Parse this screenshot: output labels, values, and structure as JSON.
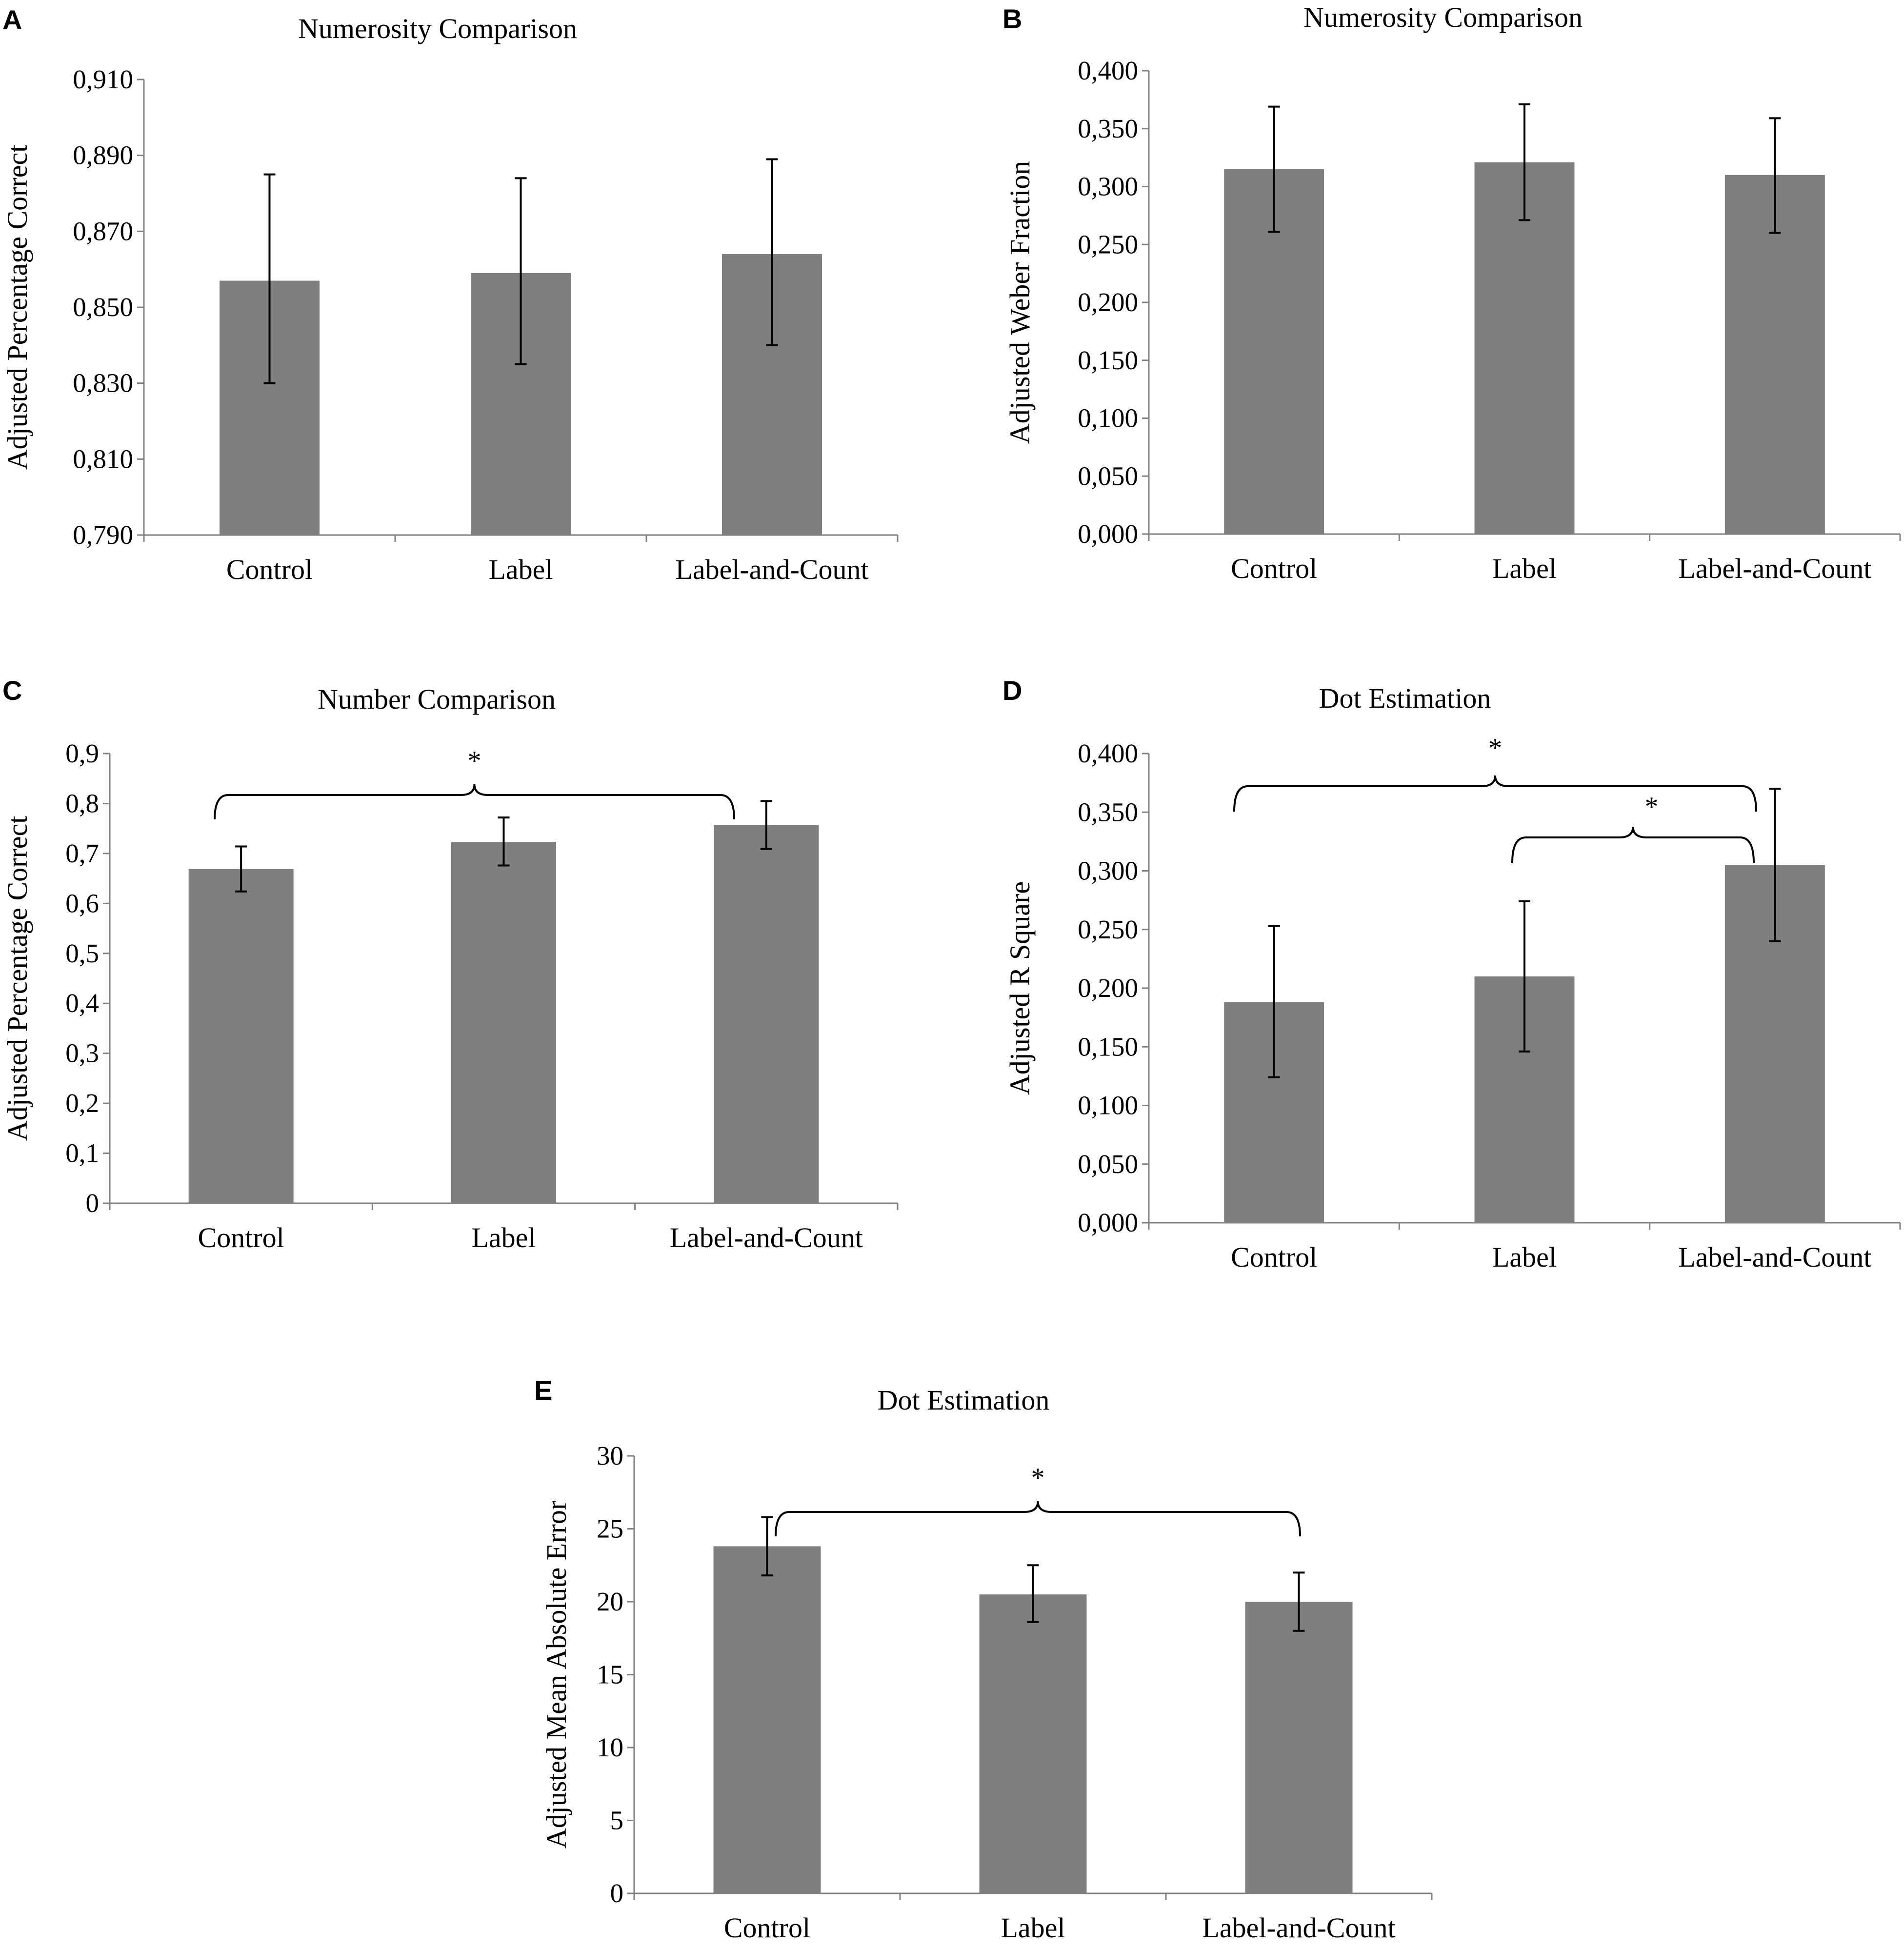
{
  "chart_data": [
    {
      "panel": "A",
      "type": "bar",
      "title": "Numerosity Comparison",
      "ylabel": "Adjusted Percentage Correct",
      "xlabel": "",
      "categories": [
        "Control",
        "Label",
        "Label-and-Count"
      ],
      "values": [
        0.857,
        0.859,
        0.864
      ],
      "errors_low": [
        0.83,
        0.835,
        0.84
      ],
      "errors_high": [
        0.885,
        0.884,
        0.889
      ],
      "ylim": [
        0.79,
        0.91
      ],
      "yticks": [
        "0,790",
        "0,810",
        "0,830",
        "0,850",
        "0,870",
        "0,890",
        "0,910"
      ],
      "significance": []
    },
    {
      "panel": "B",
      "type": "bar",
      "title": "Numerosity Comparison",
      "ylabel": "Adjusted Weber Fraction",
      "xlabel": "",
      "categories": [
        "Control",
        "Label",
        "Label-and-Count"
      ],
      "values": [
        0.315,
        0.321,
        0.31
      ],
      "errors_low": [
        0.261,
        0.271,
        0.26
      ],
      "errors_high": [
        0.369,
        0.371,
        0.359
      ],
      "ylim": [
        0.0,
        0.4
      ],
      "yticks": [
        "0,000",
        "0,050",
        "0,100",
        "0,150",
        "0,200",
        "0,250",
        "0,300",
        "0,350",
        "0,400"
      ],
      "significance": []
    },
    {
      "panel": "C",
      "type": "bar",
      "title": "Number Comparison",
      "ylabel": "Adjusted Percentage Correct",
      "xlabel": "",
      "categories": [
        "Control",
        "Label",
        "Label-and-Count"
      ],
      "values": [
        0.669,
        0.723,
        0.757
      ],
      "errors_low": [
        0.624,
        0.676,
        0.709
      ],
      "errors_high": [
        0.714,
        0.772,
        0.805
      ],
      "ylim": [
        0,
        0.9
      ],
      "yticks": [
        "0",
        "0,1",
        "0,2",
        "0,3",
        "0,4",
        "0,5",
        "0,6",
        "0,7",
        "0,8",
        "0,9"
      ],
      "significance": [
        {
          "from": "Control",
          "to": "Label-and-Count",
          "marker": "*"
        }
      ]
    },
    {
      "panel": "D",
      "type": "bar",
      "title": "Dot Estimation",
      "ylabel": "Adjusted R Square",
      "xlabel": "",
      "categories": [
        "Control",
        "Label",
        "Label-and-Count"
      ],
      "values": [
        0.188,
        0.21,
        0.305
      ],
      "errors_low": [
        0.124,
        0.146,
        0.24
      ],
      "errors_high": [
        0.253,
        0.274,
        0.37
      ],
      "ylim": [
        0.0,
        0.4
      ],
      "yticks": [
        "0,000",
        "0,050",
        "0,100",
        "0,150",
        "0,200",
        "0,250",
        "0,300",
        "0,350",
        "0,400"
      ],
      "significance": [
        {
          "from": "Control",
          "to": "Label-and-Count",
          "marker": "*"
        },
        {
          "from": "Label",
          "to": "Label-and-Count",
          "marker": "*"
        }
      ]
    },
    {
      "panel": "E",
      "type": "bar",
      "title": "Dot Estimation",
      "ylabel": "Adjusted Mean Absolute Error",
      "xlabel": "",
      "categories": [
        "Control",
        "Label",
        "Label-and-Count"
      ],
      "values": [
        23.8,
        20.5,
        20.0
      ],
      "errors_low": [
        21.8,
        18.6,
        18.0
      ],
      "errors_high": [
        25.8,
        22.5,
        22.0
      ],
      "ylim": [
        0,
        30
      ],
      "yticks": [
        "0",
        "5",
        "10",
        "15",
        "20",
        "25",
        "30"
      ],
      "significance": [
        {
          "from": "Control",
          "to": "Label-and-Count",
          "marker": "*"
        }
      ]
    }
  ]
}
